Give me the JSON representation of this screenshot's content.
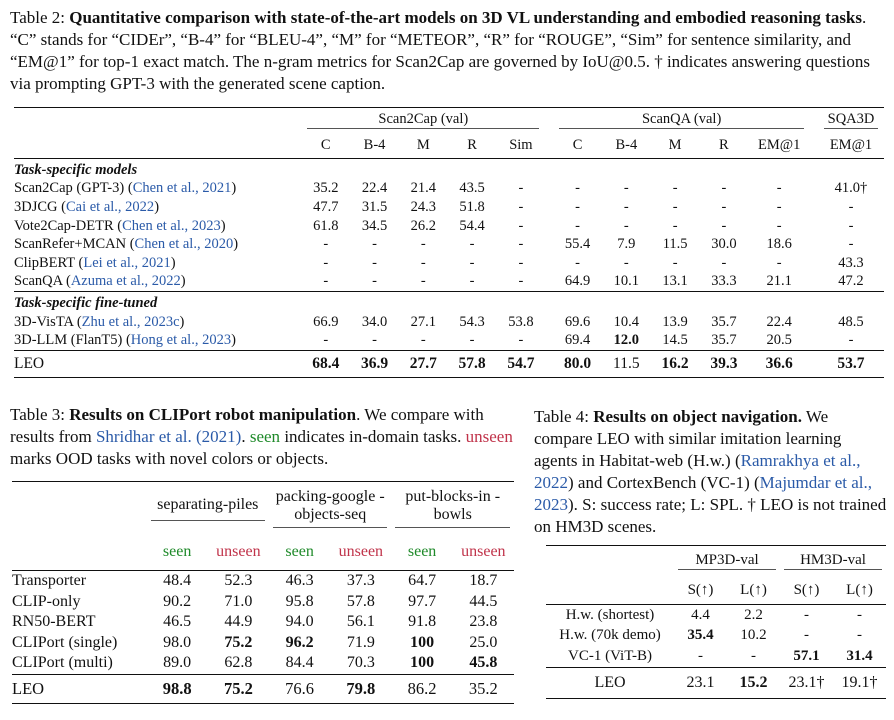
{
  "table2": {
    "caption_prefix": "Table 2: ",
    "caption_bold": "Quantitative comparison with state-of-the-art models on 3D VL understanding and embodied reasoning tasks",
    "caption_rest": ". “C” stands for “CIDEr”, “B-4” for “BLEU-4”, “M” for “METEOR”, “R” for “ROUGE”, “Sim” for sentence similarity, and “EM@1” for top-1 exact match. The n-gram metrics for Scan2Cap are governed by IoU@0.5. † indicates answering questions via prompting GPT-3 with the generated scene caption.",
    "groups": [
      "Scan2Cap (val)",
      "ScanQA (val)",
      "SQA3D"
    ],
    "metrics": [
      "C",
      "B-4",
      "M",
      "R",
      "Sim",
      "C",
      "B-4",
      "M",
      "R",
      "EM@1",
      "EM@1"
    ],
    "section1": "Task-specific models",
    "section2": "Task-specific fine-tuned",
    "rows_a": [
      {
        "name": "Scan2Cap (GPT-3) ",
        "cite": "Chen et al., 2021",
        "vals": [
          "35.2",
          "22.4",
          "21.4",
          "43.5",
          "-",
          "-",
          "-",
          "-",
          "-",
          "-",
          "41.0†"
        ]
      },
      {
        "name": "3DJCG ",
        "cite": "Cai et al., 2022",
        "vals": [
          "47.7",
          "31.5",
          "24.3",
          "51.8",
          "-",
          "-",
          "-",
          "-",
          "-",
          "-",
          "-"
        ]
      },
      {
        "name": "Vote2Cap-DETR ",
        "cite": "Chen et al., 2023",
        "vals": [
          "61.8",
          "34.5",
          "26.2",
          "54.4",
          "-",
          "-",
          "-",
          "-",
          "-",
          "-",
          "-"
        ]
      },
      {
        "name": "ScanRefer+MCAN ",
        "cite": "Chen et al., 2020",
        "vals": [
          "-",
          "-",
          "-",
          "-",
          "-",
          "55.4",
          "7.9",
          "11.5",
          "30.0",
          "18.6",
          "-"
        ]
      },
      {
        "name": "ClipBERT ",
        "cite": "Lei et al., 2021",
        "vals": [
          "-",
          "-",
          "-",
          "-",
          "-",
          "-",
          "-",
          "-",
          "-",
          "-",
          "43.3"
        ]
      },
      {
        "name": "ScanQA ",
        "cite": "Azuma et al., 2022",
        "vals": [
          "-",
          "-",
          "-",
          "-",
          "-",
          "64.9",
          "10.1",
          "13.1",
          "33.3",
          "21.1",
          "47.2"
        ]
      }
    ],
    "rows_b": [
      {
        "name": "3D-VisTA ",
        "cite": "Zhu et al., 2023c",
        "vals": [
          "66.9",
          "34.0",
          "27.1",
          "54.3",
          "53.8",
          "69.6",
          "10.4",
          "13.9",
          "35.7",
          "22.4",
          "48.5"
        ]
      },
      {
        "name": "3D-LLM (FlanT5) ",
        "cite": "Hong et al., 2023",
        "vals": [
          "-",
          "-",
          "-",
          "-",
          "-",
          "69.4",
          "12.0",
          "14.5",
          "35.7",
          "20.5",
          "-"
        ]
      }
    ],
    "leo": {
      "name": "LEO",
      "vals": [
        "68.4",
        "36.9",
        "27.7",
        "57.8",
        "54.7",
        "80.0",
        "11.5",
        "16.2",
        "39.3",
        "36.6",
        "53.7"
      ]
    }
  },
  "table3": {
    "caption_prefix": "Table 3: ",
    "caption_bold": "Results on CLIPort robot manipulation",
    "caption_a": ". We compare with results from ",
    "caption_cite": "Shridhar et al. (2021)",
    "caption_b": ". ",
    "seen_word": "seen",
    "caption_c": " indicates in-domain tasks. ",
    "unseen_word": "unseen",
    "caption_d": " marks OOD tasks with novel colors or objects.",
    "tasks": [
      "separating-piles",
      "packing-google -objects-seq",
      "put-blocks-in -bowls"
    ],
    "split_seen": "seen",
    "split_unseen": "unseen",
    "rows": [
      {
        "name": "Transporter",
        "vals": [
          "48.4",
          "52.3",
          "46.3",
          "37.3",
          "64.7",
          "18.7"
        ]
      },
      {
        "name": "CLIP-only",
        "vals": [
          "90.2",
          "71.0",
          "95.8",
          "57.8",
          "97.7",
          "44.5"
        ]
      },
      {
        "name": "RN50-BERT",
        "vals": [
          "46.5",
          "44.9",
          "94.0",
          "56.1",
          "91.8",
          "23.8"
        ]
      },
      {
        "name": "CLIPort (single)",
        "vals": [
          "98.0",
          "75.2",
          "96.2",
          "71.9",
          "100",
          "25.0"
        ]
      },
      {
        "name": "CLIPort (multi)",
        "vals": [
          "89.0",
          "62.8",
          "84.4",
          "70.3",
          "100",
          "45.8"
        ]
      }
    ],
    "leo": {
      "name": "LEO",
      "vals": [
        "98.8",
        "75.2",
        "76.6",
        "79.8",
        "86.2",
        "35.2"
      ]
    }
  },
  "table4": {
    "caption_prefix": "Table 4: ",
    "caption_bold": "Results on object navigation.",
    "caption_a": " We compare LEO with similar imitation learning agents in Habitat-web (H.w.) (",
    "cite1": "Ramrakhya et al., 2022",
    "caption_b": ") and CortexBench (VC-1) (",
    "cite2": "Majumdar et al., 2023",
    "caption_c": "). S: success rate; L: SPL. † LEO is not trained on HM3D scenes.",
    "groups": [
      "MP3D-val",
      "HM3D-val"
    ],
    "metrics": [
      "S(↑)",
      "L(↑)",
      "S(↑)",
      "L(↑)"
    ],
    "rows": [
      {
        "name": "H.w. (shortest)",
        "vals": [
          "4.4",
          "2.2",
          "-",
          "-"
        ]
      },
      {
        "name": "H.w. (70k demo)",
        "vals": [
          "35.4",
          "10.2",
          "-",
          "-"
        ]
      },
      {
        "name": "VC-1 (ViT-B)",
        "vals": [
          "-",
          "-",
          "57.1",
          "31.4"
        ]
      }
    ],
    "leo": {
      "name": "LEO",
      "vals": [
        "23.1",
        "15.2",
        "23.1†",
        "19.1†"
      ]
    }
  }
}
